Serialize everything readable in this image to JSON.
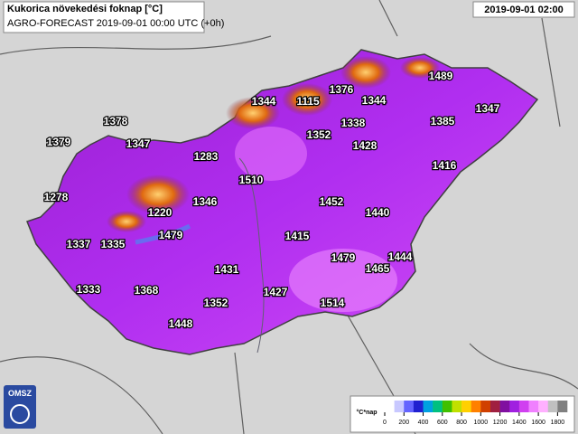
{
  "header": {
    "title": "Kukorica növekedési foknap [°C]",
    "subtitle": "AGRO-FORECAST 2019-09-01 00:00 UTC (+0h)",
    "timestamp": "2019-09-01 02:00"
  },
  "logo": "OMSZ",
  "labels": [
    1378,
    1379,
    1347,
    1283,
    1278,
    1220,
    1346,
    1510,
    1344,
    1115,
    1376,
    1344,
    1338,
    1352,
    1428,
    1489,
    1385,
    1347,
    1416,
    1452,
    1440,
    1479,
    1337,
    1335,
    1415,
    1479,
    1444,
    1465,
    1431,
    1333,
    1368,
    1427,
    1352,
    1514,
    1448
  ],
  "legend": {
    "unit": "°C*nap",
    "ticks": [
      0,
      200,
      400,
      600,
      800,
      1000,
      1200,
      1400,
      1600,
      1800
    ],
    "colors": [
      "#ffffff",
      "#c8c8ff",
      "#6464ff",
      "#2020d0",
      "#00a0e0",
      "#00c080",
      "#40c000",
      "#c0e000",
      "#ffd000",
      "#ff8000",
      "#d04000",
      "#a02040",
      "#8010a0",
      "#a020e0",
      "#d040f0",
      "#f080ff",
      "#ffb0ff",
      "#c0c0c0",
      "#808080"
    ]
  }
}
